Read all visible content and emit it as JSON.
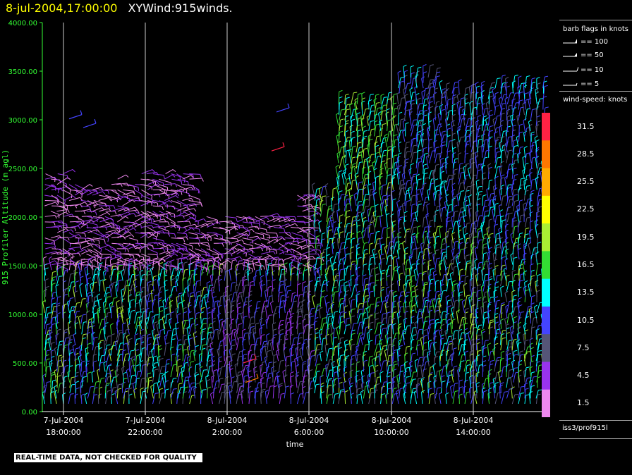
{
  "header": {
    "date": "8-jul-2004,17:00:00",
    "title": "XYWind:915winds."
  },
  "chart_data": {
    "type": "wind-barb time-height",
    "ylabel": "915 Profiler Altitude (m agl)",
    "xlabel": "time",
    "ylim": [
      0,
      4000
    ],
    "yticks": [
      "0.00",
      "500.00",
      "1000.00",
      "1500.00",
      "2000.00",
      "2500.00",
      "3000.00",
      "3500.00",
      "4000.00"
    ],
    "xticks": [
      {
        "date": "7-Jul-2004",
        "time": "18:00:00"
      },
      {
        "date": "7-Jul-2004",
        "time": "22:00:00"
      },
      {
        "date": "8-Jul-2004",
        "time": "2:00:00"
      },
      {
        "date": "8-Jul-2004",
        "time": "6:00:00"
      },
      {
        "date": "8-Jul-2004",
        "time": "10:00:00"
      },
      {
        "date": "8-Jul-2004",
        "time": "14:00:00"
      }
    ],
    "colors": [
      "#ee88ee",
      "#9933ee",
      "#555577",
      "#4444ff",
      "#00ffff",
      "#33dd33",
      "#aaee33",
      "#ffff00",
      "#ffaa00",
      "#ff7700",
      "#ff2244"
    ]
  },
  "legend": {
    "flags_title": "barb flags in knots",
    "flags": [
      "== 100",
      "== 50",
      "== 10",
      "== 5"
    ],
    "speed_title": "wind-speed: knots",
    "speeds": [
      "31.5",
      "28.5",
      "25.5",
      "22.5",
      "19.5",
      "16.5",
      "13.5",
      "10.5",
      "7.5",
      "4.5",
      "1.5"
    ]
  },
  "station": "iss3/prof915l",
  "quality_note": "REAL-TIME DATA, NOT CHECKED FOR QUALITY"
}
